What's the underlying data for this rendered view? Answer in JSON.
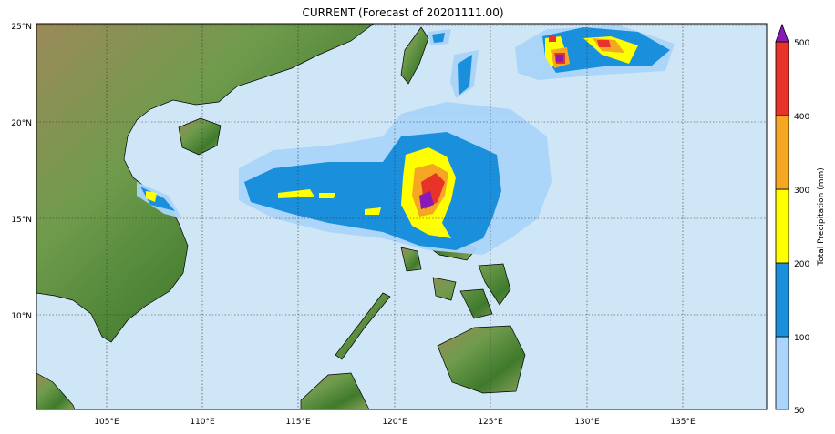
{
  "title": "CURRENT (Forecast of 20201111.00)",
  "map": {
    "lon_range": [
      101.35,
      139.4
    ],
    "lat_range": [
      5.1,
      25.1
    ],
    "lon_ticks": [
      "105°E",
      "110°E",
      "115°E",
      "120°E",
      "125°E",
      "130°E",
      "135°E"
    ],
    "lat_ticks": [
      "25°N",
      "20°N",
      "15°N",
      "10°N"
    ],
    "gridlines": true,
    "ocean_color": "#cfe6f6"
  },
  "colorbar": {
    "label": "Total Precipitation (mm)",
    "ticks": [
      "50",
      "100",
      "200",
      "300",
      "400",
      "500"
    ],
    "colors": [
      "#aad4fa",
      "#1a8fdc",
      "#ffff00",
      "#f5a623",
      "#e8332a",
      "#8a1ab5"
    ],
    "extend": "max"
  }
}
